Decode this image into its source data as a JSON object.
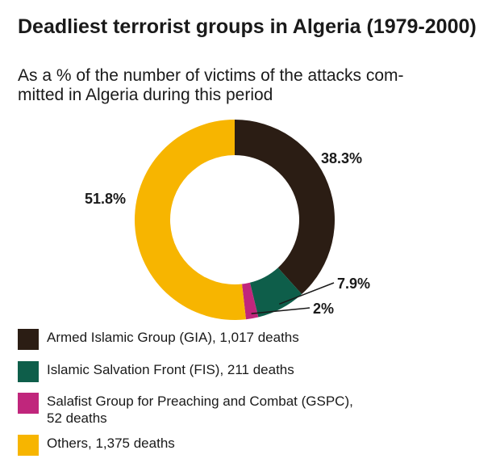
{
  "title": "Deadliest terrorist groups in Algeria (1979-2000)",
  "subtitle": "As a % of the number of victims of the attacks com-\nmitted in Algeria during this period",
  "chart_data": {
    "type": "pie",
    "donut": true,
    "slices": [
      {
        "name": "Armed Islamic Group (GIA)",
        "legend": "Armed Islamic Group (GIA), 1,017 deaths",
        "deaths": 1017,
        "percent": 38.3,
        "label": "38.3%",
        "color": "#2b1d14"
      },
      {
        "name": "Islamic Salvation Front (FIS)",
        "legend": "Islamic Salvation Front (FIS), 211 deaths",
        "deaths": 211,
        "percent": 7.9,
        "label": "7.9%",
        "color": "#0e5e4a"
      },
      {
        "name": "Salafist Group for Preaching and Combat (GSPC)",
        "legend": "Salafist Group for Preaching and Combat (GSPC),\n52 deaths",
        "deaths": 52,
        "percent": 2,
        "label": "2%",
        "color": "#c0267c"
      },
      {
        "name": "Others",
        "legend": "Others, 1,375 deaths",
        "deaths": 1375,
        "percent": 51.8,
        "label": "51.8%",
        "color": "#f7b500"
      }
    ],
    "legend_position": "bottom"
  }
}
